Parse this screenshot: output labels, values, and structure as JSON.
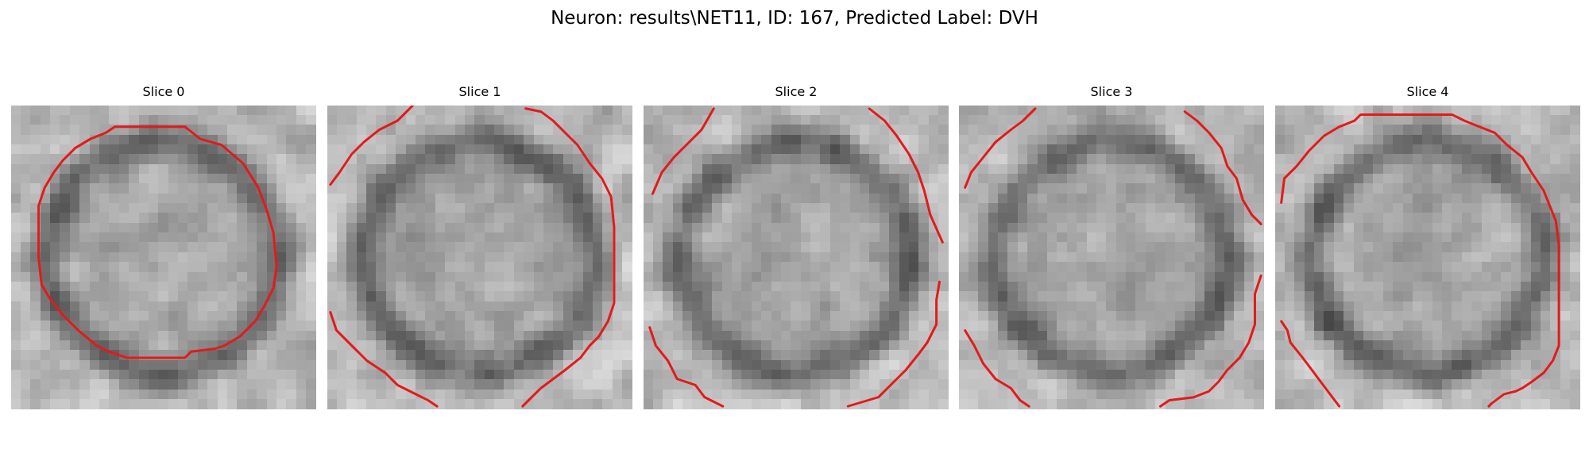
{
  "figure": {
    "title": "Neuron: results\\NET11, ID: 167, Predicted Label: DVH"
  },
  "colors": {
    "contour": "#e31a1c",
    "background": "#ffffff"
  },
  "slices": [
    {
      "label": "Slice 0",
      "seed": 11,
      "contour": [
        [
          0.34,
          0.07
        ],
        [
          0.57,
          0.07
        ],
        [
          0.62,
          0.11
        ],
        [
          0.69,
          0.13
        ],
        [
          0.76,
          0.19
        ],
        [
          0.81,
          0.27
        ],
        [
          0.84,
          0.35
        ],
        [
          0.86,
          0.42
        ],
        [
          0.87,
          0.53
        ],
        [
          0.86,
          0.6
        ],
        [
          0.83,
          0.66
        ],
        [
          0.8,
          0.71
        ],
        [
          0.75,
          0.76
        ],
        [
          0.7,
          0.79
        ],
        [
          0.67,
          0.8
        ],
        [
          0.59,
          0.81
        ],
        [
          0.57,
          0.83
        ],
        [
          0.38,
          0.83
        ],
        [
          0.32,
          0.81
        ],
        [
          0.28,
          0.79
        ],
        [
          0.22,
          0.74
        ],
        [
          0.17,
          0.69
        ],
        [
          0.13,
          0.64
        ],
        [
          0.1,
          0.59
        ],
        [
          0.09,
          0.5
        ],
        [
          0.09,
          0.33
        ],
        [
          0.11,
          0.27
        ],
        [
          0.14,
          0.22
        ],
        [
          0.17,
          0.18
        ],
        [
          0.21,
          0.14
        ],
        [
          0.26,
          0.11
        ],
        [
          0.31,
          0.09
        ],
        [
          0.34,
          0.07
        ]
      ],
      "contour_extra": []
    },
    {
      "label": "Slice 1",
      "seed": 23,
      "contour": [
        [
          0.01,
          0.26
        ],
        [
          0.04,
          0.22
        ],
        [
          0.08,
          0.16
        ],
        [
          0.12,
          0.12
        ],
        [
          0.17,
          0.08
        ],
        [
          0.23,
          0.05
        ],
        [
          0.26,
          0.02
        ],
        [
          0.28,
          0.0
        ]
      ],
      "contour_extra": [
        [
          [
            0.65,
            0.01
          ],
          [
            0.7,
            0.02
          ],
          [
            0.74,
            0.05
          ],
          [
            0.78,
            0.09
          ],
          [
            0.82,
            0.13
          ],
          [
            0.86,
            0.19
          ],
          [
            0.9,
            0.24
          ],
          [
            0.93,
            0.3
          ],
          [
            0.94,
            0.4
          ],
          [
            0.94,
            0.65
          ],
          [
            0.92,
            0.71
          ],
          [
            0.89,
            0.76
          ],
          [
            0.86,
            0.79
          ],
          [
            0.83,
            0.83
          ],
          [
            0.78,
            0.87
          ],
          [
            0.74,
            0.9
          ],
          [
            0.7,
            0.93
          ],
          [
            0.67,
            0.96
          ],
          [
            0.64,
            0.99
          ]
        ],
        [
          [
            0.01,
            0.68
          ],
          [
            0.03,
            0.74
          ],
          [
            0.08,
            0.79
          ],
          [
            0.13,
            0.84
          ],
          [
            0.19,
            0.88
          ],
          [
            0.23,
            0.92
          ],
          [
            0.29,
            0.95
          ],
          [
            0.33,
            0.97
          ],
          [
            0.36,
            0.99
          ]
        ]
      ]
    },
    {
      "label": "Slice 2",
      "seed": 37,
      "contour": [
        [
          0.03,
          0.29
        ],
        [
          0.06,
          0.22
        ],
        [
          0.1,
          0.17
        ],
        [
          0.15,
          0.12
        ],
        [
          0.19,
          0.08
        ],
        [
          0.23,
          0.01
        ]
      ],
      "contour_extra": [
        [
          [
            0.74,
            0.01
          ],
          [
            0.79,
            0.05
          ],
          [
            0.83,
            0.1
          ],
          [
            0.87,
            0.16
          ],
          [
            0.9,
            0.22
          ],
          [
            0.92,
            0.28
          ],
          [
            0.94,
            0.36
          ],
          [
            0.98,
            0.45
          ]
        ],
        [
          [
            0.97,
            0.58
          ],
          [
            0.96,
            0.64
          ],
          [
            0.96,
            0.72
          ],
          [
            0.93,
            0.78
          ],
          [
            0.9,
            0.82
          ],
          [
            0.86,
            0.87
          ],
          [
            0.82,
            0.91
          ],
          [
            0.77,
            0.96
          ],
          [
            0.67,
            0.99
          ]
        ],
        [
          [
            0.02,
            0.73
          ],
          [
            0.04,
            0.79
          ],
          [
            0.08,
            0.84
          ],
          [
            0.11,
            0.9
          ],
          [
            0.17,
            0.92
          ],
          [
            0.2,
            0.96
          ],
          [
            0.26,
            0.99
          ]
        ]
      ]
    },
    {
      "label": "Slice 3",
      "seed": 53,
      "contour": [
        [
          0.02,
          0.27
        ],
        [
          0.04,
          0.22
        ],
        [
          0.08,
          0.17
        ],
        [
          0.12,
          0.12
        ],
        [
          0.17,
          0.08
        ],
        [
          0.21,
          0.05
        ],
        [
          0.25,
          0.01
        ]
      ],
      "contour_extra": [
        [
          [
            0.74,
            0.02
          ],
          [
            0.78,
            0.05
          ],
          [
            0.82,
            0.09
          ],
          [
            0.86,
            0.14
          ],
          [
            0.88,
            0.2
          ],
          [
            0.91,
            0.24
          ],
          [
            0.93,
            0.31
          ],
          [
            0.96,
            0.36
          ],
          [
            0.99,
            0.39
          ]
        ],
        [
          [
            0.99,
            0.56
          ],
          [
            0.97,
            0.62
          ],
          [
            0.97,
            0.72
          ],
          [
            0.95,
            0.78
          ],
          [
            0.92,
            0.83
          ],
          [
            0.88,
            0.87
          ],
          [
            0.85,
            0.91
          ],
          [
            0.82,
            0.94
          ],
          [
            0.77,
            0.96
          ],
          [
            0.69,
            0.97
          ],
          [
            0.66,
            0.99
          ]
        ],
        [
          [
            0.02,
            0.74
          ],
          [
            0.05,
            0.79
          ],
          [
            0.08,
            0.85
          ],
          [
            0.12,
            0.9
          ],
          [
            0.17,
            0.93
          ],
          [
            0.2,
            0.97
          ],
          [
            0.23,
            0.99
          ]
        ]
      ]
    },
    {
      "label": "Slice 4",
      "seed": 71,
      "contour": [
        [
          0.02,
          0.32
        ],
        [
          0.03,
          0.24
        ],
        [
          0.07,
          0.2
        ],
        [
          0.11,
          0.15
        ],
        [
          0.16,
          0.1
        ],
        [
          0.21,
          0.07
        ],
        [
          0.26,
          0.05
        ],
        [
          0.28,
          0.03
        ],
        [
          0.58,
          0.03
        ],
        [
          0.62,
          0.05
        ],
        [
          0.67,
          0.07
        ],
        [
          0.72,
          0.09
        ],
        [
          0.76,
          0.13
        ],
        [
          0.81,
          0.17
        ],
        [
          0.84,
          0.22
        ],
        [
          0.88,
          0.28
        ],
        [
          0.9,
          0.33
        ],
        [
          0.92,
          0.38
        ],
        [
          0.93,
          0.46
        ],
        [
          0.93,
          0.79
        ],
        [
          0.91,
          0.84
        ],
        [
          0.88,
          0.88
        ],
        [
          0.84,
          0.91
        ],
        [
          0.81,
          0.93
        ],
        [
          0.79,
          0.94
        ],
        [
          0.75,
          0.95
        ],
        [
          0.71,
          0.98
        ],
        [
          0.7,
          0.99
        ]
      ],
      "contour_extra": [
        [
          [
            0.02,
            0.71
          ],
          [
            0.04,
            0.74
          ],
          [
            0.05,
            0.78
          ],
          [
            0.09,
            0.83
          ],
          [
            0.12,
            0.87
          ],
          [
            0.15,
            0.91
          ],
          [
            0.18,
            0.95
          ],
          [
            0.21,
            0.99
          ]
        ]
      ]
    }
  ]
}
